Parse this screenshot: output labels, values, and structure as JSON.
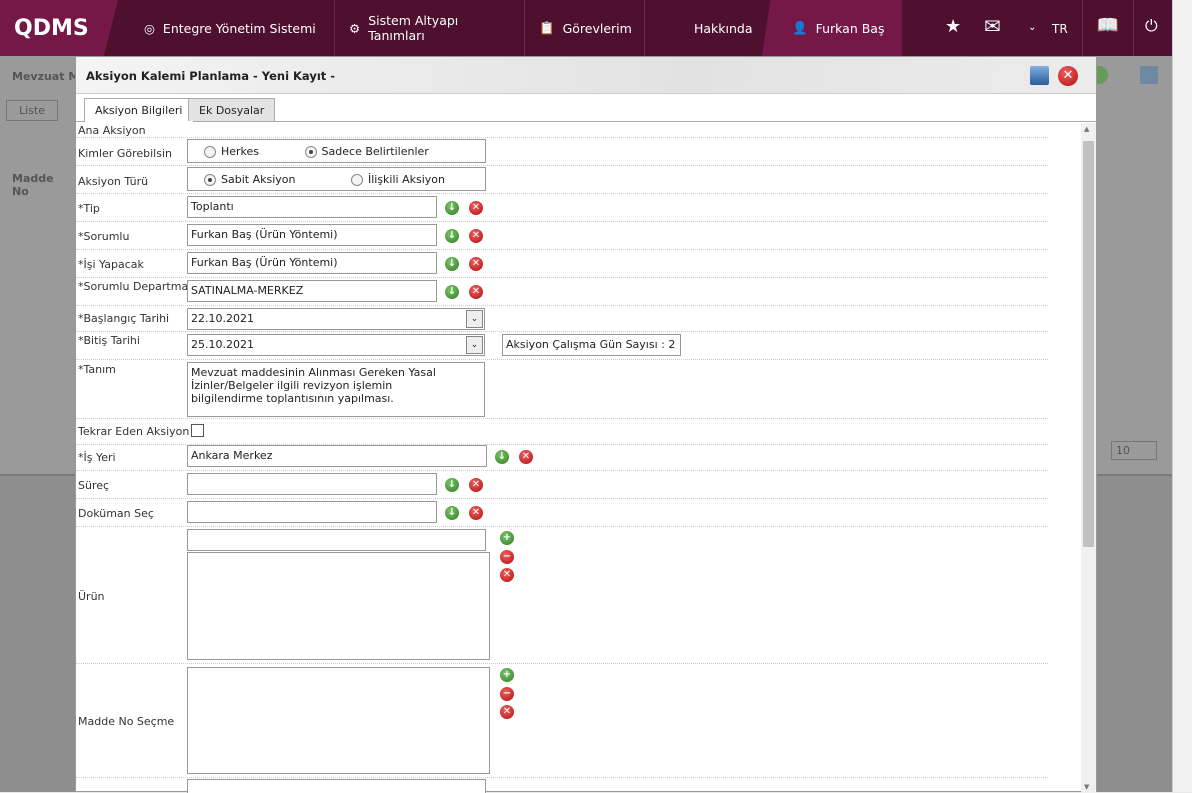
{
  "nav": {
    "logo": "QDMS",
    "items": [
      "Entegre Yönetim Sistemi",
      "Sistem Altyapı Tanımları",
      "Görevlerim",
      "Hakkında"
    ],
    "user": "Furkan Baş",
    "lang": "TR"
  },
  "background": {
    "title": "Mevzuat Ma",
    "tabs": [
      "Liste"
    ],
    "col1": "Madde No",
    "page_size": "10"
  },
  "modal": {
    "title": "Aksiyon Kalemi Planlama - Yeni Kayıt -",
    "tabs": [
      "Aksiyon Bilgileri",
      "Ek Dosyalar"
    ]
  },
  "form": {
    "ana_aksiyon": "Ana Aksiyon",
    "kimler": {
      "label": "Kimler Görebilsin",
      "opt1": "Herkes",
      "opt2": "Sadece Belirtilenler",
      "selected": "Sadece Belirtilenler"
    },
    "tur": {
      "label": "Aksiyon Türü",
      "opt1": "Sabit Aksiyon",
      "opt2": "İlişkili Aksiyon",
      "selected": "Sabit Aksiyon"
    },
    "tip": {
      "label": "*Tip",
      "value": "Toplantı"
    },
    "sorumlu": {
      "label": "*Sorumlu",
      "value": "Furkan Baş (Ürün Yöntemi)"
    },
    "isi_yapacak": {
      "label": "*İşi Yapacak",
      "value": "Furkan Baş (Ürün Yöntemi)"
    },
    "departman": {
      "label": "*Sorumlu Departman",
      "value": "SATINALMA-MERKEZ"
    },
    "baslangic": {
      "label": "*Başlangıç Tarihi",
      "value": "22.10.2021"
    },
    "bitis": {
      "label": "*Bitiş Tarihi",
      "value": "25.10.2021"
    },
    "gun_sayisi": "Aksiyon Çalışma Gün Sayısı : 2",
    "tanim": {
      "label": "*Tanım",
      "value": "Mevzuat maddesinin Alınması Gereken Yasal İzinler/Belgeler ilgili revizyon işlemin bilgilendirme toplantısının yapılması."
    },
    "tekrar": {
      "label": "Tekrar Eden Aksiyon",
      "checked": false
    },
    "is_yeri": {
      "label": "*İş Yeri",
      "value": "Ankara Merkez"
    },
    "surec": {
      "label": "Süreç",
      "value": ""
    },
    "dokuman": {
      "label": "Doküman Seç",
      "value": ""
    },
    "urun": {
      "label": "Ürün",
      "value": ""
    },
    "madde": {
      "label": "Madde No Seçme"
    }
  }
}
